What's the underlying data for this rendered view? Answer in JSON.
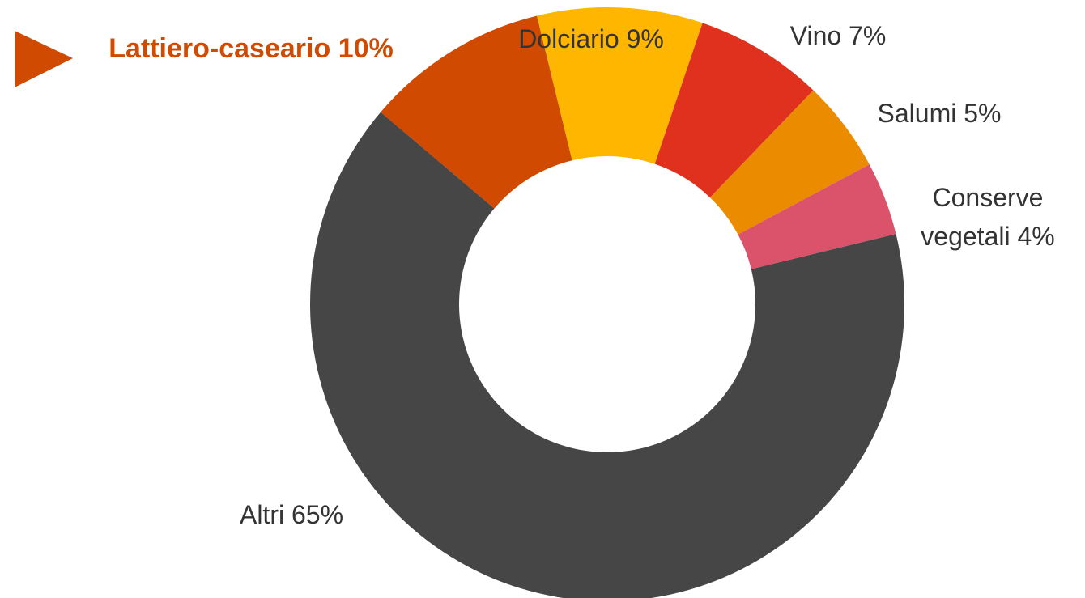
{
  "chart_data": {
    "type": "donut",
    "categories": [
      "Lattiero-caseario",
      "Dolciario",
      "Vino",
      "Salumi",
      "Conserve vegetali",
      "Altri"
    ],
    "values": [
      10,
      9,
      7,
      5,
      4,
      65
    ],
    "value_labels": [
      "10%",
      "9%",
      "7%",
      "5%",
      "4%",
      "65%"
    ],
    "colors": [
      "#d04a02",
      "#ffb600",
      "#e0301e",
      "#eb8c00",
      "#db536a",
      "#464646"
    ]
  }
}
